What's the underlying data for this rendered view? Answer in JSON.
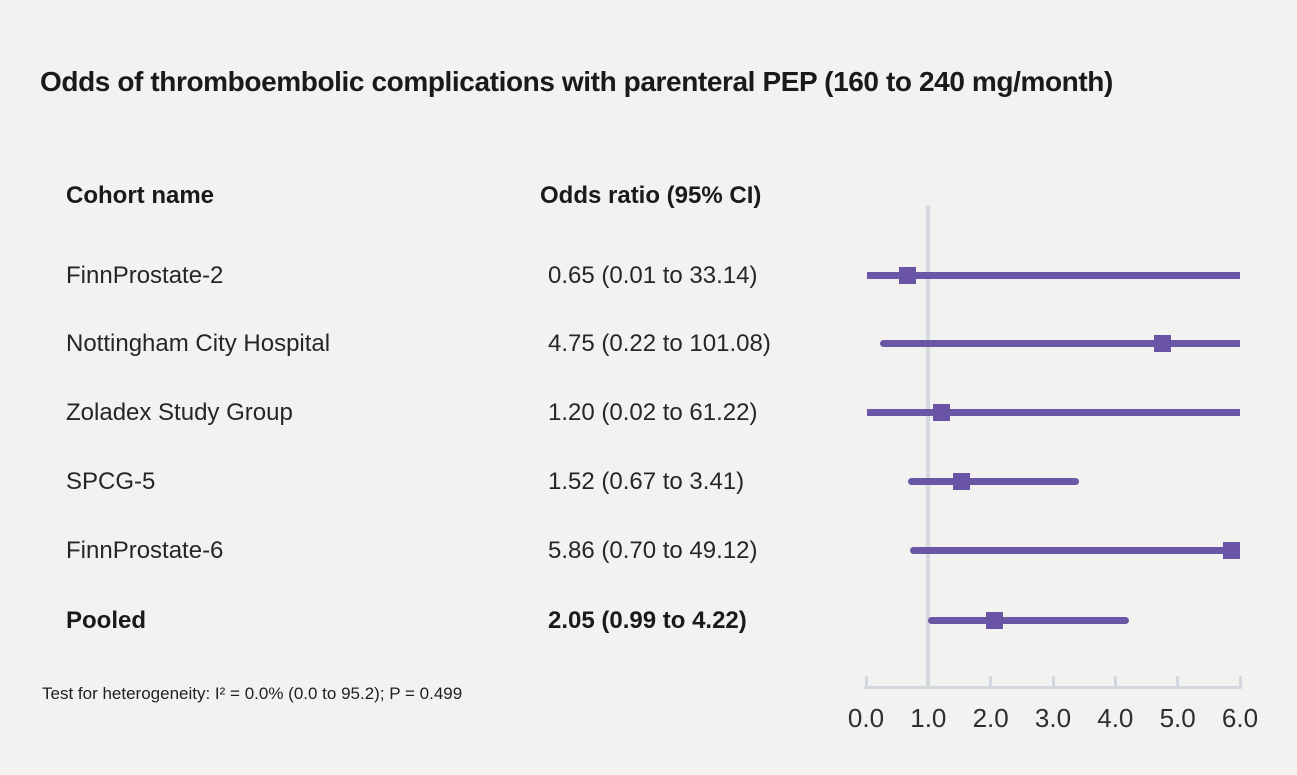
{
  "title": "Odds of thromboembolic complications with parenteral PEP (160 to 240 mg/month)",
  "table": {
    "col1_header": "Cohort name",
    "col2_header": "Odds ratio (95% CI)"
  },
  "footnote": "Test for heterogeneity: I² = 0.0% (0.0 to 95.2); P = 0.499",
  "colors": {
    "background": "#f2f2f1",
    "marker": "#6a54a5",
    "ci_line": "#6a57a6",
    "reference_line": "#d5d9e0",
    "axis": "#d2d6dd",
    "text": "#1a1a1a"
  },
  "chart_data": {
    "type": "forest",
    "title": "Odds of thromboembolic complications with parenteral PEP (160 to 240 mg/month)",
    "xlabel": "",
    "ylabel": "",
    "x_axis": {
      "min": 0.0,
      "max": 6.0,
      "tick_labels": [
        "0.0",
        "1.0",
        "2.0",
        "3.0",
        "4.0",
        "5.0",
        "6.0"
      ],
      "tick_values": [
        0,
        1,
        2,
        3,
        4,
        5,
        6
      ],
      "reference_value": 1.0
    },
    "rows": [
      {
        "label": "FinnProstate-2",
        "or_text": "0.65 (0.01 to 33.14)",
        "or": 0.65,
        "lo": 0.01,
        "hi": 33.14,
        "bold": false
      },
      {
        "label": "Nottingham City Hospital",
        "or_text": "4.75 (0.22 to 101.08)",
        "or": 4.75,
        "lo": 0.22,
        "hi": 101.08,
        "bold": false
      },
      {
        "label": "Zoladex Study Group",
        "or_text": "1.20 (0.02 to 61.22)",
        "or": 1.2,
        "lo": 0.02,
        "hi": 61.22,
        "bold": false
      },
      {
        "label": "SPCG-5",
        "or_text": "1.52 (0.67 to 3.41)",
        "or": 1.52,
        "lo": 0.67,
        "hi": 3.41,
        "bold": false
      },
      {
        "label": "FinnProstate-6",
        "or_text": "5.86 (0.70 to 49.12)",
        "or": 5.86,
        "lo": 0.7,
        "hi": 49.12,
        "bold": false
      },
      {
        "label": "Pooled",
        "or_text": "2.05 (0.99 to 4.22)",
        "or": 2.05,
        "lo": 0.99,
        "hi": 4.22,
        "bold": true
      }
    ]
  }
}
